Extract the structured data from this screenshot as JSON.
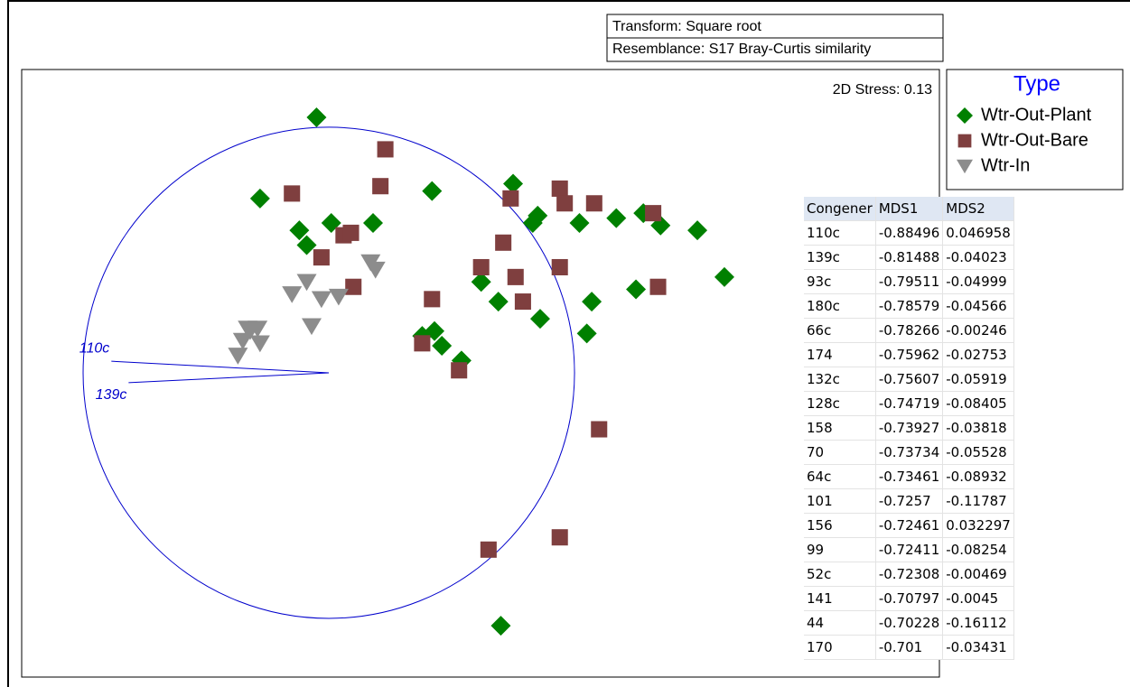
{
  "chart_data": {
    "type": "scatter",
    "header": [
      "Transform: Square root",
      "Resemblance: S17 Bray-Curtis similarity"
    ],
    "stress_label": "2D Stress: 0.13",
    "legend_title": "Type",
    "xlim": [
      -1.25,
      2.485
    ],
    "ylim": [
      -1.239,
      1.235
    ],
    "series": [
      {
        "name": "Wtr-Out-Plant",
        "color": "#008000",
        "marker": "diamond",
        "x": [
          -0.05,
          -0.28,
          -0.12,
          -0.09,
          0.01,
          0.18,
          0.42,
          0.75,
          0.85,
          0.83,
          1.02,
          1.17,
          1.28,
          1.35,
          1.5,
          1.61,
          0.62,
          0.69,
          0.86,
          1.07,
          1.25,
          1.05,
          0.38,
          0.43,
          0.46,
          0.54,
          0.7
        ],
        "values": [
          1.04,
          0.71,
          0.58,
          0.52,
          0.61,
          0.61,
          0.74,
          0.77,
          0.64,
          0.61,
          0.61,
          0.63,
          0.65,
          0.6,
          0.58,
          0.39,
          0.37,
          0.29,
          0.22,
          0.29,
          0.34,
          0.16,
          0.15,
          0.17,
          0.11,
          0.05,
          -1.03
        ]
      },
      {
        "name": "Wtr-Out-Bare",
        "color": "#7f3f3f",
        "marker": "square",
        "x": [
          0.23,
          0.21,
          -0.15,
          0.06,
          0.09,
          -0.03,
          0.1,
          0.74,
          0.94,
          0.96,
          1.08,
          1.32,
          0.71,
          0.62,
          0.76,
          0.94,
          0.42,
          0.79,
          1.34,
          0.38,
          0.53,
          1.1,
          0.94,
          0.65
        ],
        "values": [
          0.91,
          0.76,
          0.73,
          0.56,
          0.57,
          0.47,
          0.35,
          0.71,
          0.75,
          0.69,
          0.69,
          0.65,
          0.53,
          0.43,
          0.39,
          0.43,
          0.3,
          0.29,
          0.35,
          0.12,
          0.01,
          -0.23,
          -0.67,
          -0.72
        ]
      },
      {
        "name": "Wtr-In",
        "color": "#8c8c8c",
        "marker": "triangle",
        "x": [
          0.17,
          0.19,
          -0.09,
          -0.15,
          -0.03,
          0.04,
          -0.07,
          -0.33,
          -0.29,
          -0.32,
          -0.35,
          -0.28,
          -0.37
        ],
        "values": [
          0.45,
          0.42,
          0.37,
          0.32,
          0.3,
          0.31,
          0.19,
          0.18,
          0.18,
          0.17,
          0.13,
          0.12,
          0.07
        ]
      }
    ],
    "vectors": [
      {
        "label": "110c",
        "x": -0.88496,
        "y": 0.046958
      },
      {
        "label": "139c",
        "x": -0.81488,
        "y": -0.04023
      }
    ]
  },
  "table": {
    "columns": [
      "Congener",
      "MDS1",
      "MDS2"
    ],
    "rows": [
      [
        "110c",
        -0.88496,
        0.046958
      ],
      [
        "139c",
        -0.81488,
        -0.04023
      ],
      [
        "93c",
        -0.79511,
        -0.04999
      ],
      [
        "180c",
        -0.78579,
        -0.04566
      ],
      [
        "66c",
        -0.78266,
        -0.00246
      ],
      [
        "174",
        -0.75962,
        -0.02753
      ],
      [
        "132c",
        -0.75607,
        -0.05919
      ],
      [
        "128c",
        -0.74719,
        -0.08405
      ],
      [
        "158",
        -0.73927,
        -0.03818
      ],
      [
        "70",
        -0.73734,
        -0.05528
      ],
      [
        "64c",
        -0.73461,
        -0.08932
      ],
      [
        "101",
        -0.7257,
        -0.11787
      ],
      [
        "156",
        -0.72461,
        0.032297
      ],
      [
        "99",
        -0.72411,
        -0.08254
      ],
      [
        "52c",
        -0.72308,
        -0.00469
      ],
      [
        "141",
        -0.70797,
        -0.0045
      ],
      [
        "44",
        -0.70228,
        -0.16112
      ],
      [
        "170",
        -0.701,
        -0.03431
      ]
    ]
  }
}
